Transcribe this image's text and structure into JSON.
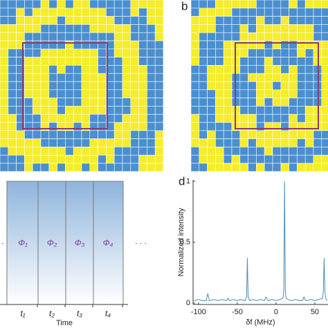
{
  "panel_labels": [
    "b",
    "d"
  ],
  "sequence": {
    "phases": [
      "Φ₁",
      "Φ₂",
      "Φ₃",
      "Φ₄"
    ],
    "times": [
      "t₁",
      "t₂",
      "t₃",
      "t₄"
    ],
    "axis_label": "Time",
    "ellipsis": [
      "·",
      "· · ·"
    ]
  },
  "chart_data": {
    "type": "line",
    "xlabel": "δf (MHz)",
    "ylabel": "Normalized intensity",
    "x": [
      -106,
      -100,
      -95,
      -90,
      -88,
      -86,
      -80,
      -75,
      -70,
      -64,
      -62,
      -60,
      -55,
      -50,
      -45,
      -40,
      -38,
      -37,
      -36,
      -34,
      -30,
      -25,
      -20,
      -15,
      -13,
      -10,
      -5,
      0,
      5,
      9,
      10,
      11,
      12,
      13,
      15,
      20,
      25,
      30,
      34,
      36,
      38,
      45,
      50,
      55,
      60,
      61,
      62,
      63,
      64,
      66
    ],
    "series": [
      {
        "name": null,
        "color": "#4a8bb8",
        "values": [
          0.02,
          0.03,
          0.02,
          0.02,
          0.08,
          0.02,
          0.03,
          0.02,
          0.03,
          0.02,
          0.04,
          0.02,
          0.03,
          0.02,
          0.03,
          0.02,
          0.05,
          0.37,
          0.05,
          0.02,
          0.03,
          0.02,
          0.03,
          0.02,
          0.05,
          0.02,
          0.03,
          0.02,
          0.03,
          0.04,
          0.1,
          1,
          0.1,
          0.04,
          0.03,
          0.02,
          0.03,
          0.02,
          0.02,
          0.05,
          0.02,
          0.03,
          0.02,
          0.03,
          0.04,
          0.1,
          0.37,
          0.1,
          0.04,
          0.02
        ]
      }
    ],
    "xlim": [
      -107,
      67
    ],
    "ylim": [
      0,
      1
    ],
    "xticks": [
      -100,
      -50,
      0,
      50
    ],
    "yticks": [
      0,
      0.5,
      1
    ]
  }
}
